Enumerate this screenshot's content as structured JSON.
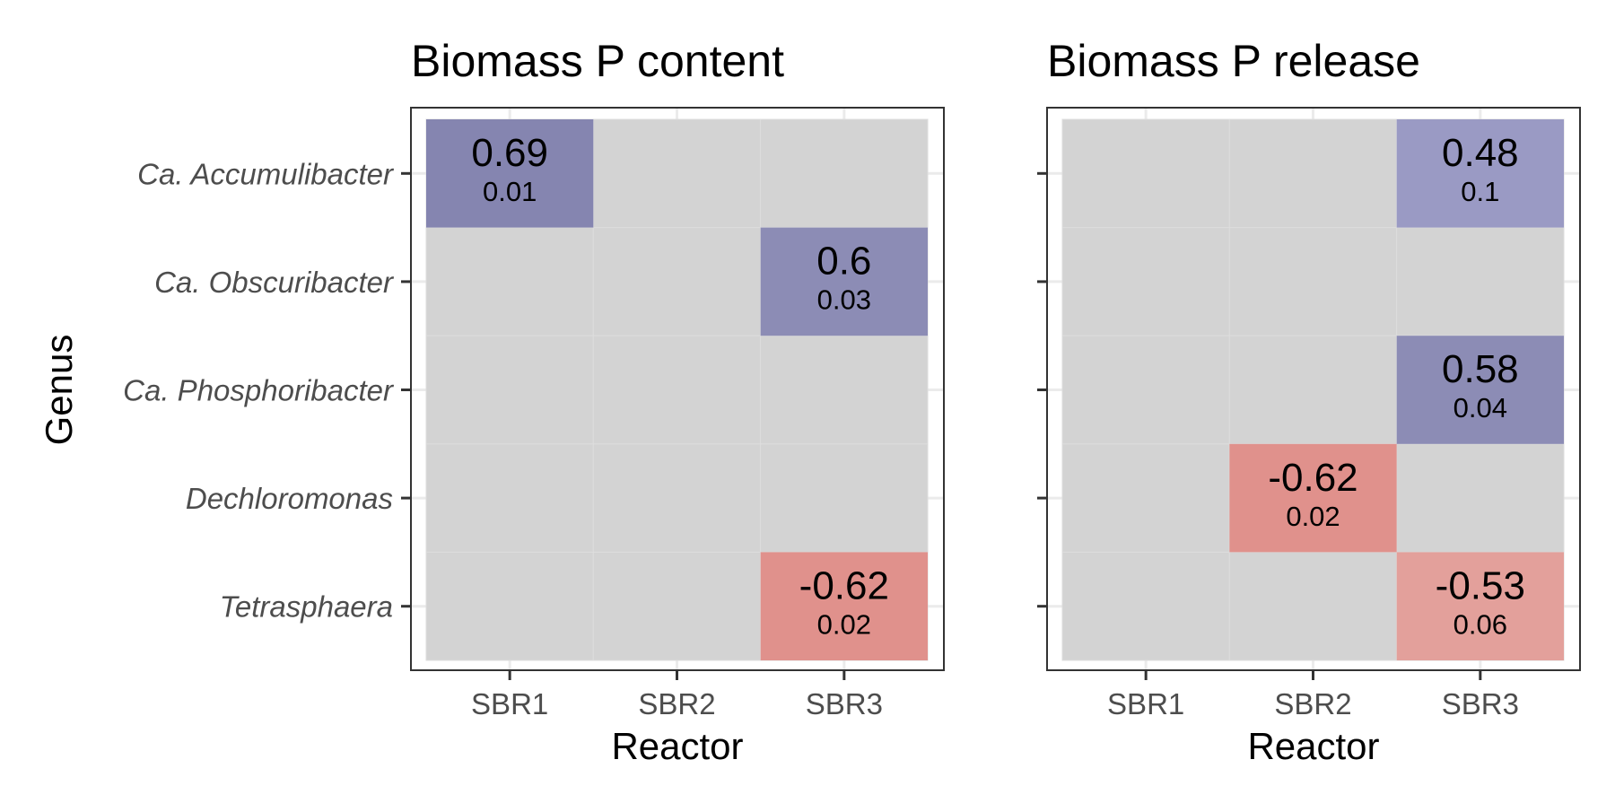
{
  "chart_data": {
    "type": "heatmap",
    "ylabel": "Genus",
    "xlabel": "Reactor",
    "genera": [
      "Ca. Accumulibacter",
      "Ca. Obscuribacter",
      "Ca. Phosphoribacter",
      "Dechloromonas",
      "Tetrasphaera"
    ],
    "reactors": [
      "SBR1",
      "SBR2",
      "SBR3"
    ],
    "colors": {
      "background": "#d3d3d3",
      "positive_strong": "#8585b0",
      "positive_mid": "#8c8cb5",
      "positive_weak": "#9a9ac4",
      "negative_mid": "#e0918c",
      "negative_weak": "#e3a09b",
      "grid": "#ebebeb",
      "panel_border": "#333333"
    },
    "panels": [
      {
        "title": "Biomass P content",
        "cells": [
          {
            "genus": "Ca. Accumulibacter",
            "reactor": "SBR1",
            "value": "0.69",
            "p": "0.01",
            "color": "#8585b0"
          },
          {
            "genus": "Ca. Obscuribacter",
            "reactor": "SBR3",
            "value": "0.6",
            "p": "0.03",
            "color": "#8c8cb5"
          },
          {
            "genus": "Tetrasphaera",
            "reactor": "SBR3",
            "value": "-0.62",
            "p": "0.02",
            "color": "#e0918c"
          }
        ]
      },
      {
        "title": "Biomass P release",
        "cells": [
          {
            "genus": "Ca. Accumulibacter",
            "reactor": "SBR3",
            "value": "0.48",
            "p": "0.1",
            "color": "#9a9ac4"
          },
          {
            "genus": "Ca. Phosphoribacter",
            "reactor": "SBR3",
            "value": "0.58",
            "p": "0.04",
            "color": "#8c8cb5"
          },
          {
            "genus": "Dechloromonas",
            "reactor": "SBR2",
            "value": "-0.62",
            "p": "0.02",
            "color": "#e0918c"
          },
          {
            "genus": "Tetrasphaera",
            "reactor": "SBR3",
            "value": "-0.53",
            "p": "0.06",
            "color": "#e3a09b"
          }
        ]
      }
    ]
  }
}
